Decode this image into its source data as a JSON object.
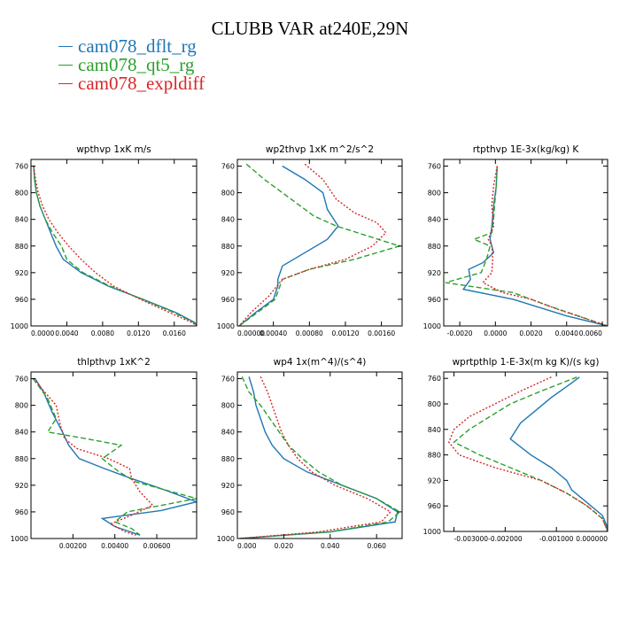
{
  "title": "CLUBB VAR at240E,29N",
  "legend": [
    {
      "label": "cam078_dflt_rg",
      "color": "#1f77b4"
    },
    {
      "label": "cam078_qt5_rg",
      "color": "#2ca02c"
    },
    {
      "label": "cam078_expldiff",
      "color": "#d62728"
    }
  ],
  "chart_data": [
    {
      "type": "line",
      "title": "wpthvp  1xK m/s",
      "ylim": [
        1000,
        750
      ],
      "yticks": [
        760,
        800,
        840,
        880,
        920,
        960,
        1000
      ],
      "ytick_labels": [
        "760",
        "800",
        "840",
        "880",
        "920",
        "960",
        "1000"
      ],
      "xlim": [
        0,
        0.0185
      ],
      "xticks": [
        0,
        0.004,
        0.008,
        0.012,
        0.016
      ],
      "xtick_labels": [
        "0.0000",
        "0.0040",
        "0.0080",
        "0.0120",
        "0.0160"
      ],
      "series": [
        {
          "name": "cam078_dflt_rg",
          "color": "#1f77b4",
          "dash": "",
          "x": [
            0.0003,
            0.0004,
            0.0006,
            0.001,
            0.0016,
            0.0022,
            0.0028,
            0.0036,
            0.0056,
            0.0086,
            0.0125,
            0.0162,
            0.0183,
            0.0185
          ],
          "y": [
            760,
            780,
            800,
            820,
            840,
            860,
            880,
            900,
            920,
            940,
            960,
            980,
            995,
            1000
          ]
        },
        {
          "name": "cam078_qt5_rg",
          "color": "#2ca02c",
          "dash": "6,3",
          "x": [
            0.0003,
            0.0004,
            0.0006,
            0.001,
            0.0016,
            0.0024,
            0.0034,
            0.004,
            0.0058,
            0.0088,
            0.0124,
            0.016,
            0.0182,
            0.0185
          ],
          "y": [
            760,
            780,
            800,
            820,
            840,
            860,
            880,
            900,
            920,
            940,
            960,
            980,
            995,
            1000
          ]
        },
        {
          "name": "cam078_expldiff",
          "color": "#d62728",
          "dash": "2,2",
          "x": [
            0.0003,
            0.0005,
            0.0008,
            0.0013,
            0.002,
            0.003,
            0.0042,
            0.0056,
            0.0072,
            0.0092,
            0.0122,
            0.0155,
            0.018,
            0.0185
          ],
          "y": [
            760,
            780,
            800,
            820,
            840,
            860,
            880,
            900,
            920,
            940,
            960,
            980,
            995,
            1000
          ]
        }
      ]
    },
    {
      "type": "line",
      "title": "wp2thvp  1xK m^2/s^2",
      "ylim": [
        1000,
        750
      ],
      "yticks": [
        760,
        800,
        840,
        880,
        920,
        960,
        1000
      ],
      "ytick_labels": [
        "760",
        "800",
        "840",
        "880",
        "920",
        "960",
        "1000"
      ],
      "xlim": [
        0,
        0.00183
      ],
      "xticks": [
        0,
        0.0004,
        0.0008,
        0.0012,
        0.0016
      ],
      "xtick_labels": [
        "0.00000",
        "0.00040",
        "0.00080",
        "0.00120",
        "0.00160"
      ],
      "series": [
        {
          "name": "cam078_dflt_rg",
          "color": "#1f77b4",
          "dash": "",
          "x": [
            0.0005,
            0.00075,
            0.00095,
            0.001,
            0.00112,
            0.001,
            0.00075,
            0.0005,
            0.00045,
            0.00045,
            0.0004,
            0.0002,
            2e-05
          ],
          "y": [
            760,
            780,
            800,
            825,
            850,
            870,
            890,
            910,
            930,
            940,
            960,
            980,
            1000
          ]
        },
        {
          "name": "cam078_qt5_rg",
          "color": "#2ca02c",
          "dash": "6,3",
          "x": [
            0.0001,
            0.0003,
            0.0006,
            0.00085,
            0.0011,
            0.00145,
            0.0018,
            0.0013,
            0.0008,
            0.0005,
            0.00042,
            0.00022,
            2e-05
          ],
          "y": [
            757,
            780,
            810,
            835,
            850,
            865,
            880,
            900,
            915,
            930,
            960,
            980,
            1000
          ]
        },
        {
          "name": "cam078_expldiff",
          "color": "#d62728",
          "dash": "2,2",
          "x": [
            0.00075,
            0.00095,
            0.0011,
            0.0013,
            0.00155,
            0.00165,
            0.0015,
            0.0012,
            0.0008,
            0.0005,
            0.00035,
            0.00015,
            2e-05
          ],
          "y": [
            757,
            780,
            810,
            830,
            845,
            860,
            880,
            900,
            915,
            930,
            955,
            980,
            1000
          ]
        }
      ]
    },
    {
      "type": "line",
      "title": "rtpthvp  1E-3x(kg/kg) K",
      "ylim": [
        1000,
        750
      ],
      "yticks": [
        760,
        800,
        840,
        880,
        920,
        960,
        1000
      ],
      "ytick_labels": [
        "760",
        "800",
        "840",
        "880",
        "920",
        "960",
        "1000"
      ],
      "xlim": [
        -0.0029,
        0.0063
      ],
      "xticks": [
        -0.002,
        0,
        0.002,
        0.004,
        0.006
      ],
      "xtick_labels": [
        "-0.0020",
        "0.0000",
        "0.0020",
        "0.0040",
        "0.0060"
      ],
      "series": [
        {
          "name": "cam078_dflt_rg",
          "color": "#1f77b4",
          "dash": "",
          "x": [
            0.0001,
            5e-05,
            -0.0001,
            -0.0002,
            -0.0003,
            -0.0002,
            -0.0001,
            -0.0007,
            -0.0015,
            -0.0014,
            -0.0018,
            0.001,
            0.004,
            0.0063
          ],
          "y": [
            760,
            790,
            820,
            850,
            870,
            880,
            890,
            905,
            915,
            930,
            945,
            960,
            985,
            1000
          ]
        },
        {
          "name": "cam078_qt5_rg",
          "color": "#2ca02c",
          "dash": "6,3",
          "x": [
            0.0001,
            5e-05,
            -5e-05,
            -0.0001,
            -0.0002,
            -0.0012,
            -0.0003,
            -0.0005,
            -0.0008,
            -0.0028,
            0.001,
            0.003,
            0.0063
          ],
          "y": [
            760,
            790,
            820,
            840,
            860,
            870,
            880,
            900,
            920,
            935,
            950,
            970,
            1000
          ]
        },
        {
          "name": "cam078_expldiff",
          "color": "#d62728",
          "dash": "2,2",
          "x": [
            0.0001,
            -0.0001,
            -0.0002,
            -0.0001,
            -0.0004,
            -0.0002,
            -0.00015,
            -0.0002,
            -0.0007,
            0.0004,
            0.002,
            0.0035,
            0.0063
          ],
          "y": [
            760,
            790,
            820,
            850,
            870,
            880,
            900,
            920,
            935,
            950,
            960,
            975,
            1000
          ]
        }
      ]
    },
    {
      "type": "line",
      "title": "thlpthvp  1xK^2",
      "ylim": [
        1000,
        750
      ],
      "yticks": [
        760,
        800,
        840,
        880,
        920,
        960,
        1000
      ],
      "ytick_labels": [
        "760",
        "800",
        "840",
        "880",
        "920",
        "960",
        "1000"
      ],
      "xlim": [
        0,
        0.0079
      ],
      "xticks": [
        0.002,
        0.004,
        0.006
      ],
      "xtick_labels": [
        "0.00200",
        "0.00400",
        "0.00600"
      ],
      "series": [
        {
          "name": "cam078_dflt_rg",
          "color": "#1f77b4",
          "dash": "",
          "x": [
            0.0002,
            0.0006,
            0.001,
            0.0015,
            0.0018,
            0.0023,
            0.0035,
            0.0048,
            0.0062,
            0.0079,
            0.0062,
            0.0034,
            0.004,
            0.0052
          ],
          "y": [
            760,
            780,
            810,
            840,
            860,
            880,
            895,
            910,
            925,
            945,
            958,
            970,
            982,
            995
          ]
        },
        {
          "name": "cam078_qt5_rg",
          "color": "#2ca02c",
          "dash": "6,3",
          "x": [
            0.0001,
            0.0008,
            0.0012,
            0.0008,
            0.0026,
            0.0043,
            0.0034,
            0.0042,
            0.005,
            0.0079,
            0.0046,
            0.004,
            0.0048,
            0.0052
          ],
          "y": [
            760,
            790,
            820,
            840,
            850,
            860,
            880,
            900,
            915,
            940,
            960,
            975,
            985,
            995
          ]
        },
        {
          "name": "cam078_expldiff",
          "color": "#d62728",
          "dash": "2,2",
          "x": [
            0.0001,
            0.0012,
            0.0014,
            0.0016,
            0.0022,
            0.0037,
            0.0047,
            0.0048,
            0.0052,
            0.0058,
            0.0048,
            0.0038,
            0.0045,
            0.005
          ],
          "y": [
            760,
            800,
            830,
            850,
            865,
            880,
            895,
            910,
            930,
            950,
            965,
            978,
            990,
            995
          ]
        }
      ]
    },
    {
      "type": "line",
      "title": "wp4  1x(m^4)/(s^4)",
      "ylim": [
        1000,
        750
      ],
      "yticks": [
        760,
        800,
        840,
        880,
        920,
        960,
        1000
      ],
      "ytick_labels": [
        "760",
        "800",
        "840",
        "880",
        "920",
        "960",
        "1000"
      ],
      "xlim": [
        0,
        0.071
      ],
      "xticks": [
        0,
        0.02,
        0.04,
        0.06
      ],
      "xtick_labels": [
        "0.000",
        "0.020",
        "0.040",
        "0.060"
      ],
      "series": [
        {
          "name": "cam078_dflt_rg",
          "color": "#1f77b4",
          "dash": "",
          "x": [
            0.005,
            0.007,
            0.008,
            0.01,
            0.012,
            0.015,
            0.02,
            0.03,
            0.045,
            0.06,
            0.069,
            0.068,
            0.04,
            0.001
          ],
          "y": [
            757,
            780,
            800,
            820,
            840,
            860,
            880,
            900,
            920,
            940,
            960,
            975,
            990,
            1000
          ]
        },
        {
          "name": "cam078_qt5_rg",
          "color": "#2ca02c",
          "dash": "6,3",
          "x": [
            0.002,
            0.005,
            0.01,
            0.014,
            0.018,
            0.022,
            0.028,
            0.035,
            0.045,
            0.06,
            0.07,
            0.065,
            0.04,
            0.001
          ],
          "y": [
            757,
            780,
            800,
            820,
            840,
            860,
            880,
            900,
            920,
            940,
            960,
            975,
            990,
            1000
          ]
        },
        {
          "name": "cam078_expldiff",
          "color": "#d62728",
          "dash": "2,2",
          "x": [
            0.01,
            0.013,
            0.015,
            0.017,
            0.019,
            0.022,
            0.026,
            0.032,
            0.042,
            0.056,
            0.066,
            0.062,
            0.035,
            0.001
          ],
          "y": [
            757,
            780,
            800,
            820,
            840,
            860,
            880,
            900,
            920,
            940,
            960,
            975,
            990,
            1000
          ]
        }
      ]
    },
    {
      "type": "line",
      "title": "wprtpthlp  1-E-3x(m kg K)/(s kg)",
      "ylim": [
        1000,
        750
      ],
      "yticks": [
        760,
        800,
        840,
        880,
        920,
        960,
        1000
      ],
      "ytick_labels": [
        "760",
        "800",
        "840",
        "880",
        "920",
        "960",
        "1000"
      ],
      "xlim": [
        -0.0032,
        0.0
      ],
      "xticks": [
        -0.003,
        -0.002,
        -0.001,
        0.0
      ],
      "xtick_labels": [
        "-0.003000",
        "-0.002000",
        "-0.001000",
        "0.000000"
      ],
      "series": [
        {
          "name": "cam078_dflt_rg",
          "color": "#1f77b4",
          "dash": "",
          "x": [
            -0.00055,
            -0.00075,
            -0.0011,
            -0.0014,
            -0.0017,
            -0.0019,
            -0.0015,
            -0.0011,
            -0.0008,
            -0.0007,
            -0.0004,
            -0.0001,
            -2e-05,
            0.0
          ],
          "y": [
            758,
            770,
            790,
            810,
            830,
            855,
            880,
            900,
            920,
            935,
            955,
            975,
            990,
            1000
          ]
        },
        {
          "name": "cam078_qt5_rg",
          "color": "#2ca02c",
          "dash": "6,3",
          "x": [
            -0.0006,
            -0.0013,
            -0.0019,
            -0.0023,
            -0.0027,
            -0.003,
            -0.0025,
            -0.0019,
            -0.0013,
            -0.0008,
            -0.0004,
            -0.0001,
            0.0
          ],
          "y": [
            758,
            780,
            800,
            820,
            840,
            860,
            880,
            900,
            920,
            940,
            960,
            980,
            1000
          ]
        },
        {
          "name": "cam078_expldiff",
          "color": "#d62728",
          "dash": "2,2",
          "x": [
            -0.0011,
            -0.0017,
            -0.0022,
            -0.0027,
            -0.003,
            -0.0031,
            -0.0029,
            -0.0022,
            -0.0013,
            -0.0008,
            -0.0004,
            -0.0001,
            0.0
          ],
          "y": [
            758,
            780,
            800,
            820,
            840,
            860,
            880,
            900,
            920,
            940,
            960,
            980,
            1000
          ]
        }
      ]
    }
  ]
}
